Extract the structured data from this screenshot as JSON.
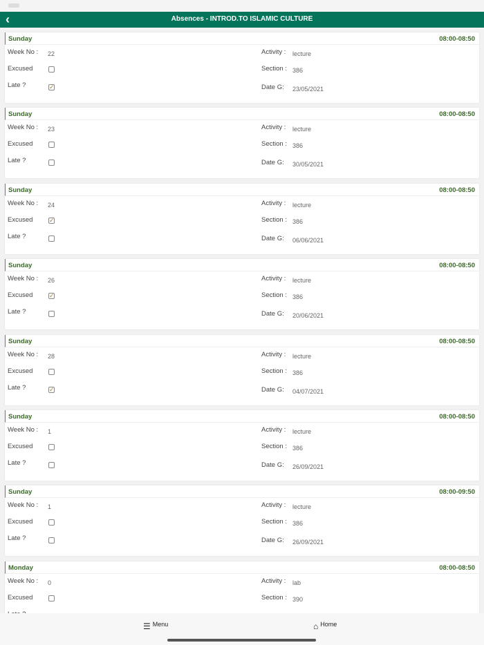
{
  "header": {
    "title": "Absences - INTROD.TO ISLAMIC CULTURE",
    "back_icon": "chevron-left-icon"
  },
  "labels": {
    "week": "Week No :",
    "excused": "Excused",
    "late": "Late ?",
    "activity": "Activity :",
    "section": "Section :",
    "date": "Date G:"
  },
  "colors": {
    "header": "#04745a",
    "day_text": "#3c6a2a",
    "check": "#9b7b3a"
  },
  "records": [
    {
      "day": "Sunday",
      "time": "08:00-08:50",
      "week": "22",
      "excused": false,
      "late": true,
      "activity": "lecture",
      "section": "386",
      "date": "23/05/2021"
    },
    {
      "day": "Sunday",
      "time": "08:00-08:50",
      "week": "23",
      "excused": false,
      "late": false,
      "activity": "lecture",
      "section": "386",
      "date": "30/05/2021"
    },
    {
      "day": "Sunday",
      "time": "08:00-08:50",
      "week": "24",
      "excused": true,
      "late": false,
      "activity": "lecture",
      "section": "386",
      "date": "06/06/2021"
    },
    {
      "day": "Sunday",
      "time": "08:00-08:50",
      "week": "26",
      "excused": true,
      "late": false,
      "activity": "lecture",
      "section": "386",
      "date": "20/06/2021"
    },
    {
      "day": "Sunday",
      "time": "08:00-08:50",
      "week": "28",
      "excused": false,
      "late": true,
      "activity": "lecture",
      "section": "386",
      "date": "04/07/2021"
    },
    {
      "day": "Sunday",
      "time": "08:00-08:50",
      "week": "1",
      "excused": false,
      "late": false,
      "activity": "lecture",
      "section": "386",
      "date": "26/09/2021"
    },
    {
      "day": "Sunday",
      "time": "08:00-09:50",
      "week": "1",
      "excused": false,
      "late": false,
      "activity": "lecture",
      "section": "386",
      "date": "26/09/2021"
    },
    {
      "day": "Monday",
      "time": "08:00-08:50",
      "week": "0",
      "excused": false,
      "late": false,
      "activity": "lab",
      "section": "390",
      "date": ""
    }
  ],
  "bottom_nav": {
    "menu": "Menu",
    "home": "Home"
  }
}
